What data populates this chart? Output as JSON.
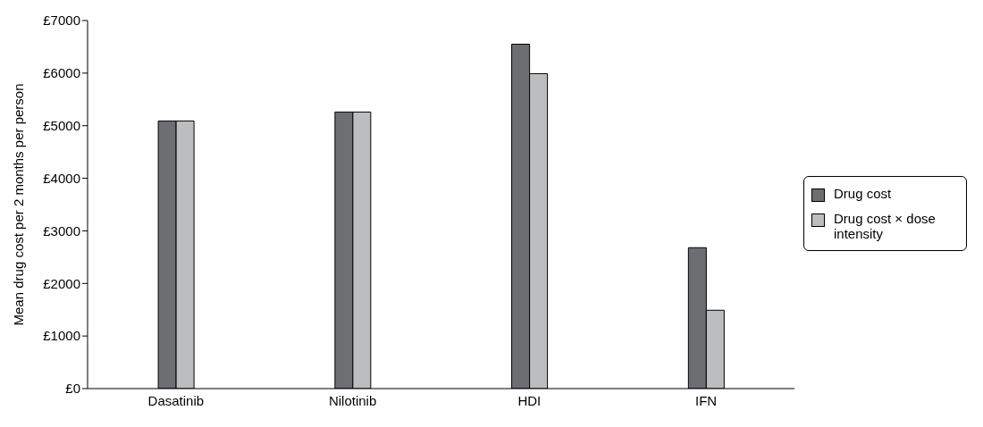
{
  "chart_data": {
    "type": "bar",
    "ylabel": "Mean drug cost per 2 months per person",
    "categories": [
      "Dasatinib",
      "Nilotinib",
      "HDI",
      "IFN"
    ],
    "series": [
      {
        "name": "Drug cost",
        "color": "#6d6e71",
        "values": [
          5090,
          5260,
          6550,
          2680
        ]
      },
      {
        "name": "Drug cost × dose intensity",
        "color": "#bcbdbf",
        "values": [
          5090,
          5260,
          5990,
          1490
        ]
      }
    ],
    "ylim": [
      0,
      7000
    ],
    "yticks": [
      {
        "value": 0,
        "label": "£0"
      },
      {
        "value": 1000,
        "label": "£1000"
      },
      {
        "value": 2000,
        "label": "£2000"
      },
      {
        "value": 3000,
        "label": "£3000"
      },
      {
        "value": 4000,
        "label": "£4000"
      },
      {
        "value": 5000,
        "label": "£5000"
      },
      {
        "value": 6000,
        "label": "£6000"
      },
      {
        "value": 7000,
        "label": "£7000"
      }
    ],
    "grid": false,
    "legend": "right"
  }
}
